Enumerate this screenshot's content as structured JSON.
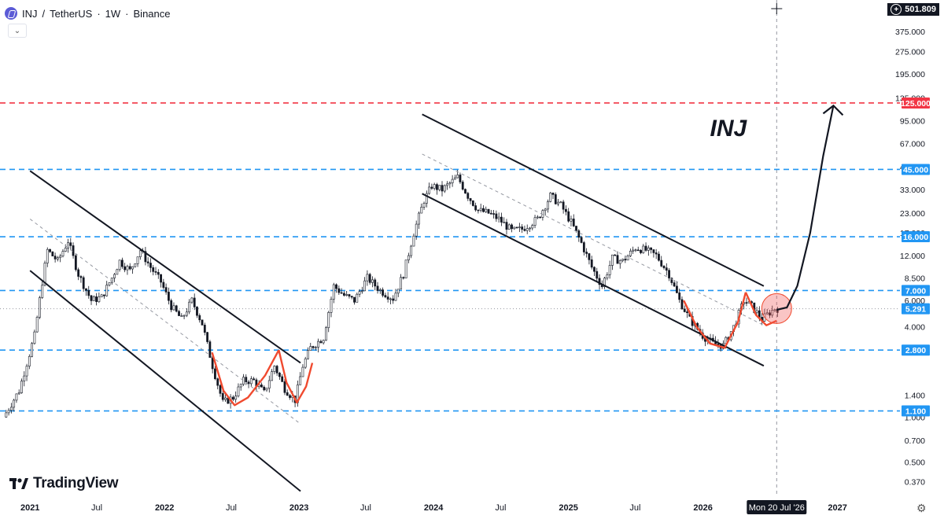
{
  "header": {
    "symbol": "INJ",
    "separator": "/",
    "quote": "TetherUS",
    "interval": "1W",
    "exchange": "Binance"
  },
  "top_price_label": "501.809",
  "crosshair_date": "Mon 20 Jul '26",
  "brand": "TradingView",
  "chart_data": {
    "type": "candlestick",
    "annotation_text": "INJ",
    "scale": "log",
    "y_range": [
      0.3,
      580
    ],
    "x_range": [
      "2020-10-20",
      "2027-04-25"
    ],
    "y_ticks": [
      "375.000",
      "275.000",
      "195.000",
      "135.000",
      "95.000",
      "67.000",
      "47.000",
      "33.000",
      "23.000",
      "17.000",
      "12.000",
      "8.500",
      "6.000",
      "4.000",
      "2.800",
      "1.400",
      "1.000",
      "0.700",
      "0.500",
      "0.370"
    ],
    "x_ticks": [
      {
        "label": "2021",
        "date": "2021-01-01",
        "bold": true
      },
      {
        "label": "Jul",
        "date": "2021-07-01"
      },
      {
        "label": "2022",
        "date": "2022-01-01",
        "bold": true
      },
      {
        "label": "Jul",
        "date": "2022-07-01"
      },
      {
        "label": "2023",
        "date": "2023-01-01",
        "bold": true
      },
      {
        "label": "Jul",
        "date": "2023-07-01"
      },
      {
        "label": "2024",
        "date": "2024-01-01",
        "bold": true
      },
      {
        "label": "Jul",
        "date": "2024-07-01"
      },
      {
        "label": "2025",
        "date": "2025-01-01",
        "bold": true
      },
      {
        "label": "Jul",
        "date": "2025-07-01"
      },
      {
        "label": "2026",
        "date": "2026-01-01",
        "bold": true
      },
      {
        "label": "2027",
        "date": "2027-01-01",
        "bold": true
      }
    ],
    "horizontal_levels": [
      {
        "value": 125.0,
        "label": "125.000",
        "color": "#f23645",
        "style": "dashed"
      },
      {
        "value": 45.0,
        "label": "45.000",
        "color": "#2196f3",
        "style": "dashed"
      },
      {
        "value": 16.0,
        "label": "16.000",
        "color": "#2196f3",
        "style": "dashed"
      },
      {
        "value": 7.0,
        "label": "7.000",
        "color": "#2196f3",
        "style": "dashed"
      },
      {
        "value": 2.8,
        "label": "2.800",
        "color": "#2196f3",
        "style": "dashed"
      },
      {
        "value": 1.1,
        "label": "1.100",
        "color": "#2196f3",
        "style": "dashed"
      }
    ],
    "current_price": {
      "value": 5.291,
      "label": "5.291"
    },
    "price_path": [
      [
        "2020-10-26",
        1.0
      ],
      [
        "2020-12-07",
        1.5
      ],
      [
        "2021-01-18",
        3.5
      ],
      [
        "2021-02-08",
        8.0
      ],
      [
        "2021-02-22",
        13.0
      ],
      [
        "2021-03-22",
        11.0
      ],
      [
        "2021-04-19",
        15.0
      ],
      [
        "2021-05-17",
        9.0
      ],
      [
        "2021-06-21",
        6.0
      ],
      [
        "2021-07-19",
        6.3
      ],
      [
        "2021-08-16",
        8.5
      ],
      [
        "2021-09-06",
        11.0
      ],
      [
        "2021-10-04",
        9.5
      ],
      [
        "2021-11-01",
        13.0
      ],
      [
        "2021-11-29",
        10.0
      ],
      [
        "2021-12-27",
        8.0
      ],
      [
        "2022-01-24",
        5.5
      ],
      [
        "2022-02-21",
        4.5
      ],
      [
        "2022-03-21",
        6.0
      ],
      [
        "2022-04-18",
        4.2
      ],
      [
        "2022-05-16",
        2.2
      ],
      [
        "2022-06-13",
        1.25
      ],
      [
        "2022-07-11",
        1.35
      ],
      [
        "2022-08-08",
        1.75
      ],
      [
        "2022-09-05",
        1.75
      ],
      [
        "2022-10-03",
        1.45
      ],
      [
        "2022-10-31",
        2.2
      ],
      [
        "2022-11-28",
        1.55
      ],
      [
        "2022-12-26",
        1.3
      ],
      [
        "2023-01-16",
        2.2
      ],
      [
        "2023-02-06",
        2.9
      ],
      [
        "2023-03-13",
        3.4
      ],
      [
        "2023-04-10",
        7.5
      ],
      [
        "2023-05-08",
        6.5
      ],
      [
        "2023-06-05",
        6.0
      ],
      [
        "2023-07-10",
        8.5
      ],
      [
        "2023-08-14",
        7.0
      ],
      [
        "2023-09-18",
        6.2
      ],
      [
        "2023-10-16",
        9.0
      ],
      [
        "2023-11-13",
        17.0
      ],
      [
        "2023-12-11",
        28.0
      ],
      [
        "2024-01-01",
        35.0
      ],
      [
        "2024-01-29",
        33.0
      ],
      [
        "2024-03-11",
        40.0
      ],
      [
        "2024-04-08",
        30.0
      ],
      [
        "2024-05-06",
        24.0
      ],
      [
        "2024-06-03",
        23.0
      ],
      [
        "2024-07-01",
        21.0
      ],
      [
        "2024-08-05",
        17.5
      ],
      [
        "2024-09-02",
        18.0
      ],
      [
        "2024-10-14",
        21.0
      ],
      [
        "2024-11-18",
        30.0
      ],
      [
        "2024-12-16",
        26.0
      ],
      [
        "2025-01-13",
        20.0
      ],
      [
        "2025-02-10",
        14.5
      ],
      [
        "2025-03-10",
        10.0
      ],
      [
        "2025-04-07",
        7.5
      ],
      [
        "2025-05-05",
        11.5
      ],
      [
        "2025-06-02",
        11.0
      ],
      [
        "2025-07-07",
        13.5
      ],
      [
        "2025-08-04",
        13.0
      ],
      [
        "2025-09-01",
        12.0
      ],
      [
        "2025-10-06",
        9.0
      ],
      [
        "2025-11-03",
        6.0
      ],
      [
        "2025-12-01",
        4.5
      ],
      [
        "2026-01-05",
        3.5
      ],
      [
        "2026-02-02",
        3.1
      ],
      [
        "2026-03-02",
        3.0
      ],
      [
        "2026-03-30",
        4.0
      ],
      [
        "2026-04-27",
        6.0
      ],
      [
        "2026-05-18",
        5.5
      ],
      [
        "2026-06-15",
        4.5
      ],
      [
        "2026-07-06",
        5.0
      ],
      [
        "2026-07-20",
        5.3
      ]
    ],
    "channels": [
      {
        "upper": [
          [
            "2021-01-01",
            44.0
          ],
          [
            "2023-01-05",
            2.3
          ]
        ],
        "lower": [
          [
            "2021-01-01",
            9.5
          ],
          [
            "2023-01-05",
            0.32
          ]
        ],
        "mid": [
          [
            "2021-01-01",
            21.0
          ],
          [
            "2023-01-05",
            0.9
          ]
        ]
      },
      {
        "upper": [
          [
            "2023-12-01",
            105.0
          ],
          [
            "2026-06-15",
            7.5
          ]
        ],
        "lower": [
          [
            "2023-12-01",
            31.0
          ],
          [
            "2026-06-15",
            2.2
          ]
        ],
        "mid": [
          [
            "2023-12-01",
            57.0
          ],
          [
            "2026-06-15",
            4.1
          ]
        ]
      }
    ],
    "projection_path": [
      [
        "2026-07-20",
        5.2
      ],
      [
        "2026-08-17",
        5.4
      ],
      [
        "2026-09-14",
        7.5
      ],
      [
        "2026-10-19",
        17.0
      ],
      [
        "2026-11-23",
        55.0
      ],
      [
        "2026-12-21",
        120.0
      ]
    ]
  }
}
